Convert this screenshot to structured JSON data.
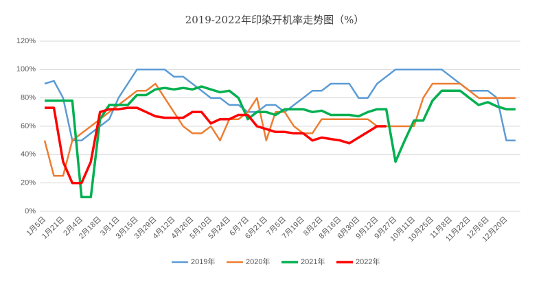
{
  "chart_data": {
    "type": "line",
    "title": "2019-2022年印染开机率走势图（%）",
    "categories": [
      "1月5日",
      null,
      "1月21日",
      null,
      "2月4日",
      null,
      "2月18日",
      null,
      "3月1日",
      null,
      "3月15日",
      null,
      "3月29日",
      null,
      "4月12日",
      null,
      "4月26日",
      null,
      "5月10日",
      null,
      "5月24日",
      null,
      "6月7日",
      null,
      "6月21日",
      null,
      "7月5日",
      null,
      "7月19日",
      null,
      "8月2日",
      null,
      "8月16日",
      null,
      "8月30日",
      null,
      "9月12日",
      null,
      "9月27日",
      null,
      "10月11日",
      null,
      "10月25日",
      null,
      "11月8日",
      null,
      "11月22日",
      null,
      "12月6日",
      null,
      "12月20日",
      null
    ],
    "series": [
      {
        "name": "2019年",
        "color": "#5b9bd5",
        "values": [
          90,
          92,
          80,
          50,
          50,
          55,
          60,
          65,
          80,
          90,
          100,
          100,
          100,
          100,
          95,
          95,
          90,
          85,
          80,
          80,
          75,
          75,
          70,
          70,
          75,
          75,
          70,
          75,
          80,
          85,
          85,
          90,
          90,
          90,
          80,
          80,
          90,
          95,
          100,
          100,
          100,
          100,
          100,
          100,
          95,
          90,
          85,
          85,
          85,
          80,
          50,
          50
        ]
      },
      {
        "name": "2020年",
        "color": "#ed7d31",
        "values": [
          50,
          25,
          25,
          50,
          55,
          60,
          65,
          70,
          75,
          80,
          85,
          85,
          90,
          80,
          70,
          60,
          55,
          55,
          60,
          50,
          65,
          65,
          70,
          80,
          50,
          70,
          70,
          60,
          55,
          55,
          65,
          65,
          65,
          65,
          65,
          65,
          60,
          60,
          60,
          60,
          60,
          80,
          90,
          90,
          90,
          90,
          85,
          80,
          80,
          80,
          80,
          80
        ]
      },
      {
        "name": "2021年",
        "color": "#00b050",
        "values": [
          78,
          78,
          78,
          78,
          10,
          10,
          65,
          75,
          75,
          75,
          82,
          82,
          86,
          87,
          86,
          87,
          86,
          88,
          86,
          84,
          85,
          80,
          65,
          70,
          70,
          68,
          72,
          72,
          72,
          70,
          71,
          68,
          68,
          68,
          67,
          70,
          72,
          72,
          35,
          50,
          64,
          64,
          78,
          85,
          85,
          85,
          80,
          75,
          77,
          74,
          72,
          72
        ]
      },
      {
        "name": "2022年",
        "color": "#ff0000",
        "values": [
          73,
          73,
          35,
          20,
          20,
          35,
          70,
          72,
          72,
          73,
          73,
          70,
          67,
          66,
          66,
          66,
          70,
          70,
          62,
          65,
          65,
          68,
          68,
          60,
          58,
          56,
          56,
          55,
          55,
          50,
          52,
          51,
          50,
          48,
          52,
          56,
          60,
          60,
          null,
          null,
          null,
          null,
          null,
          null,
          null,
          null,
          null,
          null,
          null,
          null,
          null,
          null
        ]
      }
    ],
    "ylim": [
      0,
      120
    ],
    "yticks": [
      {
        "value": 0,
        "label": "0%"
      },
      {
        "value": 20,
        "label": "20%"
      },
      {
        "value": 40,
        "label": "40%"
      },
      {
        "value": 60,
        "label": "60%"
      },
      {
        "value": 80,
        "label": "80%"
      },
      {
        "value": 100,
        "label": "100%"
      },
      {
        "value": 120,
        "label": "120%"
      }
    ],
    "grid": true
  }
}
